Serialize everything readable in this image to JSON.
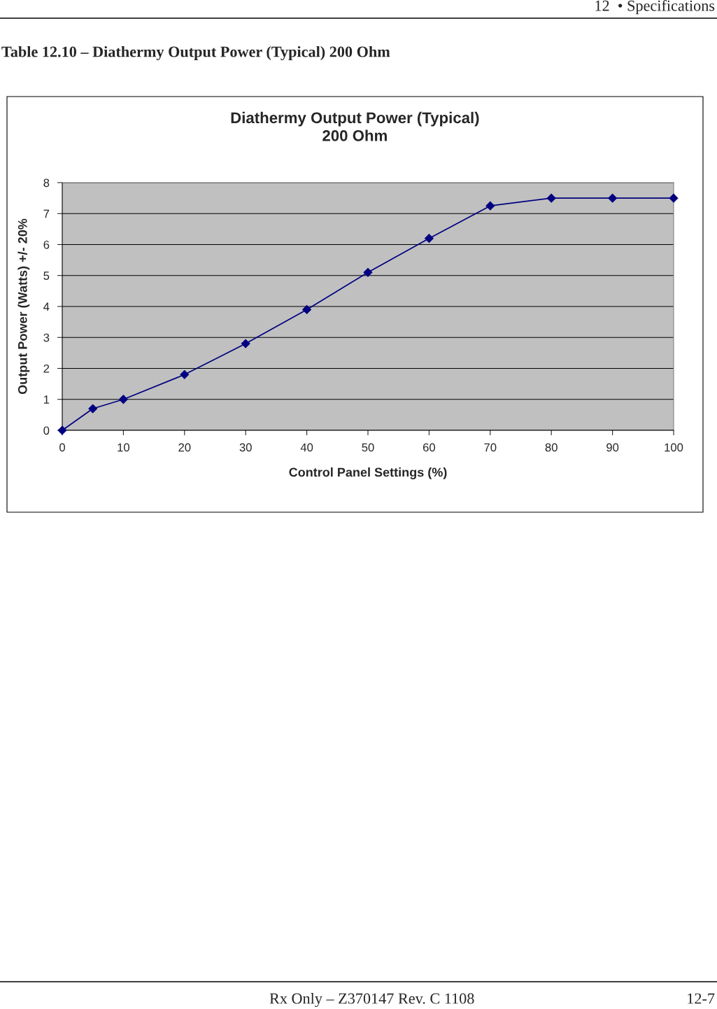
{
  "chart_data": {
    "type": "line",
    "title": "Diathermy Output Power (Typical)\n200 Ohm",
    "subtitle": "Table 12.10 – Diathermy Output Power (Typical) 200 Ohm",
    "xlabel": "Control Panel Settings (%)",
    "ylabel": "Output Power (Watts) +/- 20%",
    "x": [
      0,
      5,
      10,
      20,
      30,
      40,
      50,
      60,
      70,
      80,
      90,
      100
    ],
    "series": [
      {
        "color": "#000080",
        "values": [
          0,
          0.7,
          1.0,
          1.8,
          2.8,
          3.9,
          5.1,
          6.2,
          7.25,
          7.5,
          7.5,
          7.5
        ]
      }
    ],
    "xlim": [
      0,
      100
    ],
    "xticks": [
      0,
      10,
      20,
      30,
      40,
      50,
      60,
      70,
      80,
      90,
      100
    ],
    "ylim": [
      0,
      8
    ],
    "yticks": [
      0,
      1,
      2,
      3,
      4,
      5,
      6,
      7,
      8
    ],
    "grid": "y",
    "legend": false,
    "marker": "diamond",
    "line_style": "solid",
    "annotations": [
      "12  • Specifications",
      "Rx Only – Z370147 Rev. C 1108",
      "12-7"
    ]
  }
}
